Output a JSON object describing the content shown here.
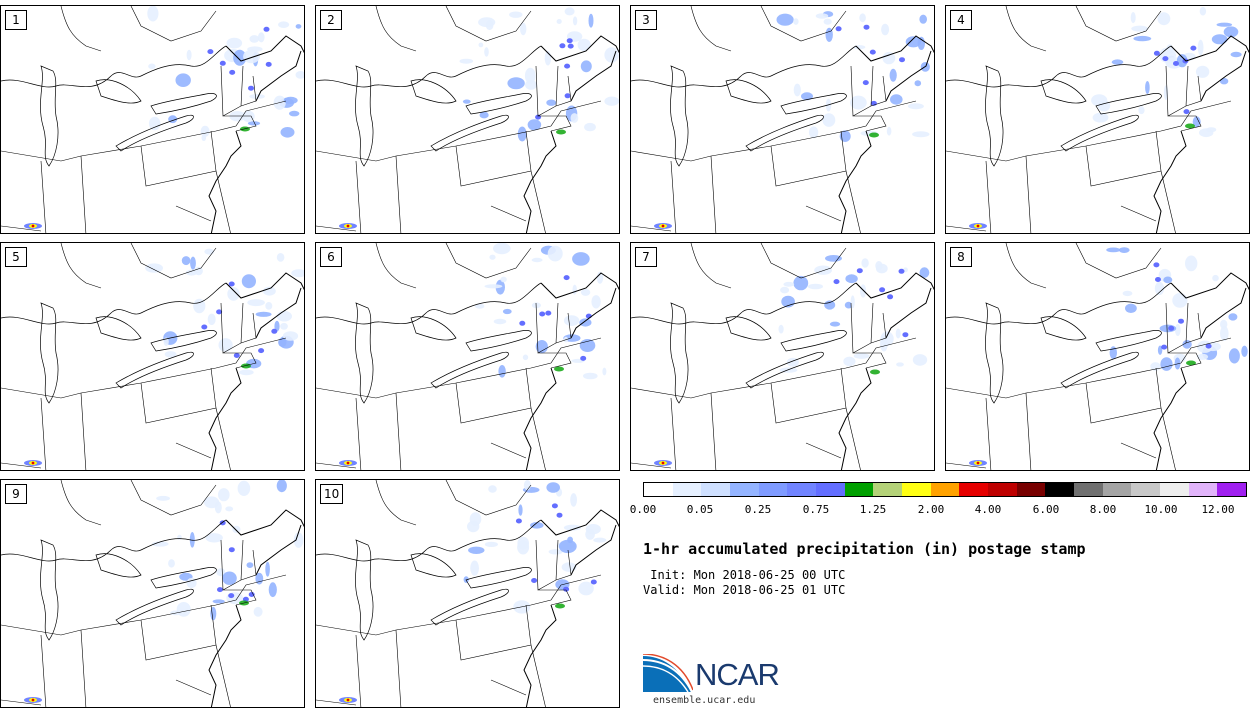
{
  "panels": [
    {
      "label": "1"
    },
    {
      "label": "2"
    },
    {
      "label": "3"
    },
    {
      "label": "4"
    },
    {
      "label": "5"
    },
    {
      "label": "6"
    },
    {
      "label": "7"
    },
    {
      "label": "8"
    },
    {
      "label": "9"
    },
    {
      "label": "10"
    }
  ],
  "colorbar": {
    "colors": [
      "#ffffff",
      "#e6f0ff",
      "#cfe0ff",
      "#94b4ff",
      "#7f9bff",
      "#7184ff",
      "#636eff",
      "#00a000",
      "#b4d278",
      "#ffff14",
      "#ffa200",
      "#e60000",
      "#be0000",
      "#780000",
      "#000000",
      "#707070",
      "#a4a4a4",
      "#c8c8c8",
      "#eeeeee",
      "#e1b4fa",
      "#a020f0"
    ],
    "ticks": [
      "0.00",
      "0.05",
      "0.25",
      "0.75",
      "1.25",
      "2.00",
      "4.00",
      "6.00",
      "8.00",
      "10.00",
      "12.00"
    ]
  },
  "title": "1-hr accumulated precipitation (in) postage stamp",
  "init": " Init: Mon 2018-06-25 00 UTC",
  "valid": "Valid: Mon 2018-06-25 01 UTC",
  "logo": {
    "text": "NCAR",
    "url": "ensemble.ucar.edu"
  }
}
